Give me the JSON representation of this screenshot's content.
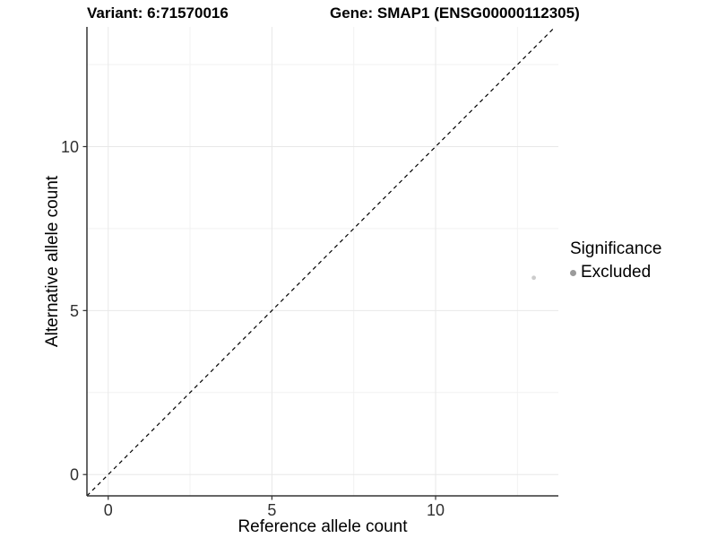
{
  "chart_data": {
    "type": "scatter",
    "title_left": "Variant: 6:71570016",
    "title_right": "Gene: SMAP1 (ENSG00000112305)",
    "xlabel": "Reference allele count",
    "ylabel": "Alternative allele count",
    "xlim": [
      -0.65,
      13.75
    ],
    "ylim": [
      -0.65,
      13.65
    ],
    "x_ticks": [
      0,
      5,
      10
    ],
    "y_ticks": [
      0,
      5,
      10
    ],
    "x_minor_ticks": [
      2.5,
      7.5,
      12.5
    ],
    "y_minor_ticks": [
      2.5,
      7.5,
      12.5
    ],
    "grid": "major+minor",
    "points": [
      {
        "x": 13,
        "y": 6,
        "series": "Excluded"
      }
    ],
    "reference_line": {
      "type": "identity",
      "style": "dashed",
      "color": "#000000"
    },
    "legend": {
      "title": "Significance",
      "position": "right",
      "items": [
        {
          "label": "Excluded",
          "color": "#9b9b9b"
        }
      ]
    },
    "colors": {
      "point": "#cccccc",
      "axis_line": "#333333",
      "grid_major": "#e8e8e8",
      "grid_minor": "#f2f2f2",
      "tick_label": "#303030",
      "axis_title": "#000000",
      "background": "#ffffff"
    }
  }
}
